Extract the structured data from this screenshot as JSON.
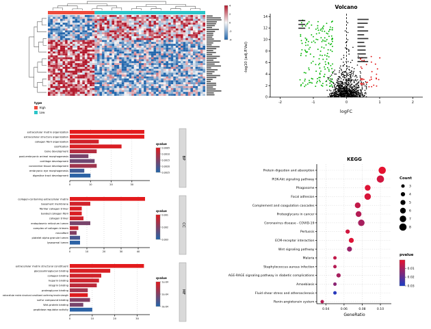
{
  "styles": {
    "background": "#ffffff",
    "go_gradient_low": "#E31A1C",
    "go_gradient_high": "#2166AC",
    "kegg_gradient_low": "#E8112D",
    "kegg_gradient_high": "#1B3DC5"
  },
  "chart_data": [
    {
      "id": "heatmap",
      "type": "heatmap",
      "rows": 42,
      "cols": 64,
      "col_split_frac": 0.3,
      "row_split_frac": 0.3,
      "annotation": {
        "high_color": "#EE4B3C",
        "low_color": "#2BC5C9"
      },
      "cell_colors": {
        "pos": "#B2182B",
        "mid": "#F7F7F7",
        "neg": "#2166AC"
      },
      "colorbar_ticks": [
        "4",
        "2",
        "0",
        "-2",
        "-4"
      ],
      "legend": {
        "title": "type",
        "items": [
          {
            "label": "High",
            "color": "#EE4B3C"
          },
          {
            "label": "Low",
            "color": "#2BC5C9"
          }
        ]
      }
    },
    {
      "id": "volcano",
      "type": "scatter",
      "title": "Volcano",
      "xlabel": "logFC",
      "ylabel": "-log10 (adj.P.Val)",
      "xlim": [
        -2.3,
        2.3
      ],
      "ylim": [
        0,
        14.5
      ],
      "xticks": [
        -2,
        -1,
        0,
        1,
        2
      ],
      "yticks": [
        0,
        2,
        4,
        6,
        8,
        10,
        12,
        14
      ],
      "vline_x": 0,
      "series": [
        {
          "name": "not significant",
          "color": "#000000",
          "n": 850
        },
        {
          "name": "down-regulated",
          "color": "#00B400",
          "n": 170
        },
        {
          "name": "up-regulated",
          "color": "#E01515",
          "n": 38
        }
      ]
    },
    {
      "id": "go-bp",
      "type": "bar",
      "panel_label": "BP",
      "xmax": 38,
      "xticks": [
        0,
        10,
        20,
        30
      ],
      "categories": [
        "extracellular matrix organization",
        "extracellular structure organization",
        "collagen fibril organization",
        "ossification",
        "bone development",
        "post-embryonic animal morphogenesis",
        "cartilage development",
        "connective tissue development",
        "embryonic eye morphogenesis",
        "digestive tract development"
      ],
      "values": [
        36,
        36,
        14,
        25,
        13,
        9,
        12,
        13,
        7,
        10
      ],
      "qvalue_t": [
        0,
        0,
        0.1,
        0.05,
        0.25,
        0.55,
        0.6,
        0.35,
        0.85,
        0.95
      ],
      "legend": {
        "title": "qvalue",
        "labels": [
          "0.0005",
          "0.0010",
          "0.0015",
          "0.0020",
          "0.0025"
        ]
      }
    },
    {
      "id": "go-cc",
      "type": "bar",
      "panel_label": "CC",
      "xmax": 46,
      "xticks": [
        0,
        10,
        20,
        30,
        40
      ],
      "categories": [
        "collagen-containing extracellular matrix",
        "basement membrane",
        "fibrillar collagen trimer",
        "banded collagen fibril",
        "collagen trimer",
        "endoplasmic reticulum lumen",
        "complex of collagen trimers",
        "microfibril",
        "platelet alpha granule lumen",
        "lysosomal lumen"
      ],
      "values": [
        44,
        12,
        7,
        7,
        8,
        12,
        5,
        4,
        6,
        6
      ],
      "qvalue_t": [
        0,
        0.1,
        0.05,
        0.05,
        0.1,
        0.55,
        0.15,
        0.5,
        0.8,
        0.95
      ],
      "legend": {
        "title": "qvalue",
        "labels": [
          "0.001",
          "0.002",
          "0.003"
        ]
      }
    },
    {
      "id": "go-mf",
      "type": "bar",
      "panel_label": "MF",
      "xmax": 35,
      "xticks": [
        0,
        10,
        20,
        30
      ],
      "categories": [
        "extracellular matrix structural constituent",
        "glycosaminoglycan binding",
        "collagen binding",
        "heparin binding",
        "integrin binding",
        "proteoglycan binding",
        "extracellular matrix structural constituent conferring tensile strength",
        "sulfur compound binding",
        "Wnt-protein binding",
        "peptidase regulator activity"
      ],
      "values": [
        33,
        18,
        14,
        13,
        12,
        8,
        8,
        9,
        6,
        10
      ],
      "qvalue_t": [
        0,
        0.05,
        0.1,
        0.12,
        0.2,
        0.35,
        0.02,
        0.5,
        0.55,
        0.95
      ],
      "legend": {
        "title": "qvalue",
        "labels": [
          "1e-04",
          "2e-04",
          "3e-04"
        ]
      }
    },
    {
      "id": "kegg",
      "type": "bubble",
      "title": "KEGG",
      "xlabel": "GeneRatio",
      "xlim": [
        0.03,
        0.112
      ],
      "xticks": [
        0.04,
        0.06,
        0.08,
        0.1
      ],
      "categories": [
        "Protein digestion and absorption",
        "PI3K-Akt signaling pathway",
        "Phagosome",
        "Focal adhesion",
        "Complement and coagulation cascades",
        "Proteoglycans in cancer",
        "Coronavirus disease - COVID-19",
        "Pertussis",
        "ECM-receptor interaction",
        "Wnt signaling pathway",
        "Malaria",
        "Staphylococcus aureus infection",
        "AGE-RAGE signaling pathway in diabetic complications",
        "Amoebiasis",
        "Fluid shear stress and atherosclerosis",
        "Renin-angiotensin system"
      ],
      "gene_ratio": [
        0.102,
        0.1,
        0.086,
        0.086,
        0.075,
        0.076,
        0.079,
        0.064,
        0.068,
        0.066,
        0.05,
        0.05,
        0.054,
        0.05,
        0.05,
        0.036
      ],
      "count": [
        8,
        8,
        6,
        7,
        6,
        6,
        7,
        4,
        5,
        5,
        3,
        3,
        4,
        3,
        3,
        3
      ],
      "pvalue": [
        0.001,
        0.004,
        0.002,
        0.003,
        0.006,
        0.008,
        0.01,
        0.004,
        0.002,
        0.012,
        0.006,
        0.008,
        0.01,
        0.014,
        0.028,
        0.008
      ],
      "count_legend": {
        "title": "Count",
        "values": [
          3,
          4,
          5,
          6,
          7,
          8
        ]
      },
      "pvalue_legend": {
        "title": "pvalue",
        "labels": [
          "0.01",
          "0.02",
          "0.03"
        ]
      }
    }
  ]
}
